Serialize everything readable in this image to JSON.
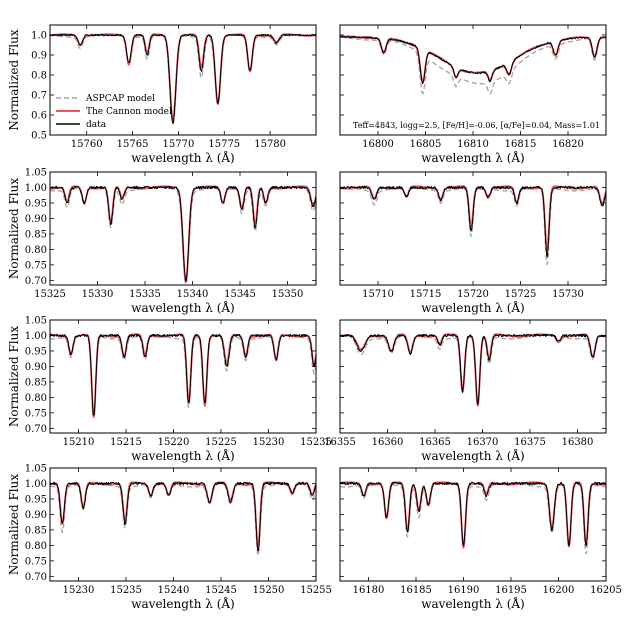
{
  "figure": {
    "ylabel": "Normalized Flux",
    "xlabel": "wavelength λ (Å)"
  },
  "colors": {
    "aspcap": "#a8a8a8",
    "cannon": "#e8585d",
    "data": "#000000"
  },
  "legend": {
    "items": [
      {
        "label": "ASPCAP model",
        "style": "dashed",
        "color": "#a8a8a8"
      },
      {
        "label": "The Cannon model",
        "style": "solid",
        "color": "#e8585d"
      },
      {
        "label": "data",
        "style": "solid",
        "color": "#000000"
      }
    ]
  },
  "annotation": "Teff=4843, logg=2.5, [Fe/H]=-0.06, [α/Fe]=0.04, Mass=1.01",
  "chart_data": [
    {
      "type": "line",
      "panel": 1,
      "xlim": [
        15756,
        15785
      ],
      "ylim": [
        0.5,
        1.05
      ],
      "xticks": [
        15760,
        15765,
        15770,
        15775,
        15780
      ],
      "yticks": [
        0.5,
        0.6,
        0.7,
        0.8,
        0.9,
        1.0
      ],
      "ytick_labels": [
        "0.5",
        "0.6",
        "0.7",
        "0.8",
        "0.9",
        "1.0"
      ],
      "show_ylabel": true,
      "continuum": 1.0,
      "features": [
        {
          "c": 15759.3,
          "d": 0.05,
          "w": 0.35
        },
        {
          "c": 15764.6,
          "d": 0.14,
          "w": 0.35
        },
        {
          "c": 15769.4,
          "d": 0.44,
          "w": 0.45
        },
        {
          "c": 15772.5,
          "d": 0.18,
          "w": 0.35
        },
        {
          "c": 15774.3,
          "d": 0.34,
          "w": 0.4
        },
        {
          "c": 15777.8,
          "d": 0.18,
          "w": 0.35
        },
        {
          "c": 15766.6,
          "d": 0.1,
          "w": 0.3
        },
        {
          "c": 15780.7,
          "d": 0.04,
          "w": 0.4
        }
      ]
    },
    {
      "type": "line",
      "panel": 2,
      "xlim": [
        16796,
        16824
      ],
      "ylim": [
        0.5,
        1.05
      ],
      "xticks": [
        16800,
        16805,
        16810,
        16815,
        16820
      ],
      "yticks": [
        0.5,
        0.6,
        0.7,
        0.8,
        0.9,
        1.0
      ],
      "ytick_labels": [],
      "show_ylabel": false,
      "continuum": 0.99,
      "broad": {
        "c": 16810.5,
        "d": 0.18,
        "w": 5.5
      },
      "features": [
        {
          "c": 16804.7,
          "d": 0.17,
          "w": 0.35
        },
        {
          "c": 16800.6,
          "d": 0.07,
          "w": 0.35
        },
        {
          "c": 16808.2,
          "d": 0.05,
          "w": 0.3
        },
        {
          "c": 16811.8,
          "d": 0.05,
          "w": 0.3
        },
        {
          "c": 16813.8,
          "d": 0.06,
          "w": 0.35
        },
        {
          "c": 16818.7,
          "d": 0.07,
          "w": 0.35
        },
        {
          "c": 16822.8,
          "d": 0.1,
          "w": 0.35
        }
      ]
    },
    {
      "type": "line",
      "panel": 3,
      "xlim": [
        15325,
        15353
      ],
      "ylim": [
        0.685,
        1.05
      ],
      "xticks": [
        15325,
        15330,
        15335,
        15340,
        15345,
        15350
      ],
      "yticks": [
        0.7,
        0.75,
        0.8,
        0.85,
        0.9,
        0.95,
        1.0,
        1.05
      ],
      "ytick_labels": [
        "0.70",
        "0.75",
        "0.80",
        "0.85",
        "0.90",
        "0.95",
        "1.00",
        "1.05"
      ],
      "show_ylabel": true,
      "continuum": 1.0,
      "features": [
        {
          "c": 15326.8,
          "d": 0.05,
          "w": 0.3
        },
        {
          "c": 15328.6,
          "d": 0.05,
          "w": 0.3
        },
        {
          "c": 15331.4,
          "d": 0.12,
          "w": 0.3
        },
        {
          "c": 15332.6,
          "d": 0.04,
          "w": 0.3
        },
        {
          "c": 15339.3,
          "d": 0.3,
          "w": 0.42
        },
        {
          "c": 15343.2,
          "d": 0.05,
          "w": 0.3
        },
        {
          "c": 15345.2,
          "d": 0.07,
          "w": 0.3
        },
        {
          "c": 15346.6,
          "d": 0.13,
          "w": 0.3
        },
        {
          "c": 15347.7,
          "d": 0.05,
          "w": 0.3
        },
        {
          "c": 15352.7,
          "d": 0.06,
          "w": 0.35
        }
      ]
    },
    {
      "type": "line",
      "panel": 4,
      "xlim": [
        15706,
        15734
      ],
      "ylim": [
        0.685,
        1.05
      ],
      "xticks": [
        15710,
        15715,
        15720,
        15725,
        15730
      ],
      "yticks": [
        0.7,
        0.75,
        0.8,
        0.85,
        0.9,
        0.95,
        1.0,
        1.05
      ],
      "ytick_labels": [],
      "show_ylabel": false,
      "continuum": 1.0,
      "features": [
        {
          "c": 15709.6,
          "d": 0.04,
          "w": 0.35
        },
        {
          "c": 15713.0,
          "d": 0.03,
          "w": 0.3
        },
        {
          "c": 15716.6,
          "d": 0.04,
          "w": 0.3
        },
        {
          "c": 15719.8,
          "d": 0.14,
          "w": 0.3
        },
        {
          "c": 15721.6,
          "d": 0.03,
          "w": 0.3
        },
        {
          "c": 15724.6,
          "d": 0.05,
          "w": 0.3
        },
        {
          "c": 15727.8,
          "d": 0.22,
          "w": 0.3
        },
        {
          "c": 15733.6,
          "d": 0.06,
          "w": 0.35
        }
      ]
    },
    {
      "type": "line",
      "panel": 5,
      "xlim": [
        15207,
        15235
      ],
      "ylim": [
        0.685,
        1.05
      ],
      "xticks": [
        15210,
        15215,
        15220,
        15225,
        15230,
        15235
      ],
      "yticks": [
        0.7,
        0.75,
        0.8,
        0.85,
        0.9,
        0.95,
        1.0,
        1.05
      ],
      "ytick_labels": [
        "0.70",
        "0.75",
        "0.80",
        "0.85",
        "0.90",
        "0.95",
        "1.00",
        "1.05"
      ],
      "show_ylabel": true,
      "continuum": 1.0,
      "features": [
        {
          "c": 15209.2,
          "d": 0.06,
          "w": 0.3
        },
        {
          "c": 15211.6,
          "d": 0.26,
          "w": 0.3
        },
        {
          "c": 15214.8,
          "d": 0.07,
          "w": 0.3
        },
        {
          "c": 15217.0,
          "d": 0.07,
          "w": 0.3
        },
        {
          "c": 15221.6,
          "d": 0.22,
          "w": 0.3
        },
        {
          "c": 15223.3,
          "d": 0.22,
          "w": 0.3
        },
        {
          "c": 15225.6,
          "d": 0.1,
          "w": 0.35
        },
        {
          "c": 15227.6,
          "d": 0.07,
          "w": 0.3
        },
        {
          "c": 15230.8,
          "d": 0.08,
          "w": 0.3
        },
        {
          "c": 15234.8,
          "d": 0.1,
          "w": 0.3
        }
      ]
    },
    {
      "type": "line",
      "panel": 6,
      "xlim": [
        16355,
        16383
      ],
      "ylim": [
        0.685,
        1.05
      ],
      "xticks": [
        16355,
        16360,
        16365,
        16370,
        16375,
        16380
      ],
      "yticks": [
        0.7,
        0.75,
        0.8,
        0.85,
        0.9,
        0.95,
        1.0,
        1.05
      ],
      "ytick_labels": [],
      "show_ylabel": false,
      "continuum": 1.0,
      "features": [
        {
          "c": 16357.2,
          "d": 0.05,
          "w": 0.6
        },
        {
          "c": 16360.4,
          "d": 0.05,
          "w": 0.4
        },
        {
          "c": 16362.4,
          "d": 0.06,
          "w": 0.35
        },
        {
          "c": 16365.5,
          "d": 0.03,
          "w": 0.3
        },
        {
          "c": 16367.9,
          "d": 0.18,
          "w": 0.3
        },
        {
          "c": 16369.5,
          "d": 0.22,
          "w": 0.3
        },
        {
          "c": 16370.7,
          "d": 0.08,
          "w": 0.3
        },
        {
          "c": 16378.0,
          "d": 0.02,
          "w": 0.3
        },
        {
          "c": 16381.6,
          "d": 0.07,
          "w": 0.35
        }
      ]
    },
    {
      "type": "line",
      "panel": 7,
      "xlim": [
        15227,
        15255
      ],
      "ylim": [
        0.685,
        1.05
      ],
      "xticks": [
        15230,
        15235,
        15240,
        15245,
        15250,
        15255
      ],
      "yticks": [
        0.7,
        0.75,
        0.8,
        0.85,
        0.9,
        0.95,
        1.0,
        1.05
      ],
      "ytick_labels": [
        "0.70",
        "0.75",
        "0.80",
        "0.85",
        "0.90",
        "0.95",
        "1.00",
        "1.05"
      ],
      "show_ylabel": true,
      "continuum": 1.0,
      "features": [
        {
          "c": 15228.3,
          "d": 0.13,
          "w": 0.3
        },
        {
          "c": 15230.5,
          "d": 0.08,
          "w": 0.3
        },
        {
          "c": 15234.9,
          "d": 0.13,
          "w": 0.3
        },
        {
          "c": 15237.6,
          "d": 0.04,
          "w": 0.3
        },
        {
          "c": 15239.5,
          "d": 0.04,
          "w": 0.3
        },
        {
          "c": 15243.8,
          "d": 0.06,
          "w": 0.35
        },
        {
          "c": 15246.0,
          "d": 0.06,
          "w": 0.35
        },
        {
          "c": 15248.9,
          "d": 0.22,
          "w": 0.3
        },
        {
          "c": 15252.5,
          "d": 0.03,
          "w": 0.3
        },
        {
          "c": 15254.6,
          "d": 0.04,
          "w": 0.3
        }
      ]
    },
    {
      "type": "line",
      "panel": 8,
      "xlim": [
        16177,
        16205
      ],
      "ylim": [
        0.685,
        1.05
      ],
      "xticks": [
        16180,
        16185,
        16190,
        16195,
        16200,
        16205
      ],
      "yticks": [
        0.7,
        0.75,
        0.8,
        0.85,
        0.9,
        0.95,
        1.0,
        1.05
      ],
      "ytick_labels": [],
      "show_ylabel": false,
      "continuum": 1.0,
      "features": [
        {
          "c": 16179.5,
          "d": 0.04,
          "w": 0.3
        },
        {
          "c": 16181.9,
          "d": 0.11,
          "w": 0.3
        },
        {
          "c": 16184.1,
          "d": 0.16,
          "w": 0.3
        },
        {
          "c": 16185.3,
          "d": 0.09,
          "w": 0.3
        },
        {
          "c": 16186.3,
          "d": 0.07,
          "w": 0.3
        },
        {
          "c": 16190.0,
          "d": 0.2,
          "w": 0.3
        },
        {
          "c": 16192.4,
          "d": 0.04,
          "w": 0.3
        },
        {
          "c": 16199.3,
          "d": 0.15,
          "w": 0.35
        },
        {
          "c": 16201.1,
          "d": 0.2,
          "w": 0.3
        },
        {
          "c": 16202.9,
          "d": 0.2,
          "w": 0.3
        }
      ]
    }
  ]
}
